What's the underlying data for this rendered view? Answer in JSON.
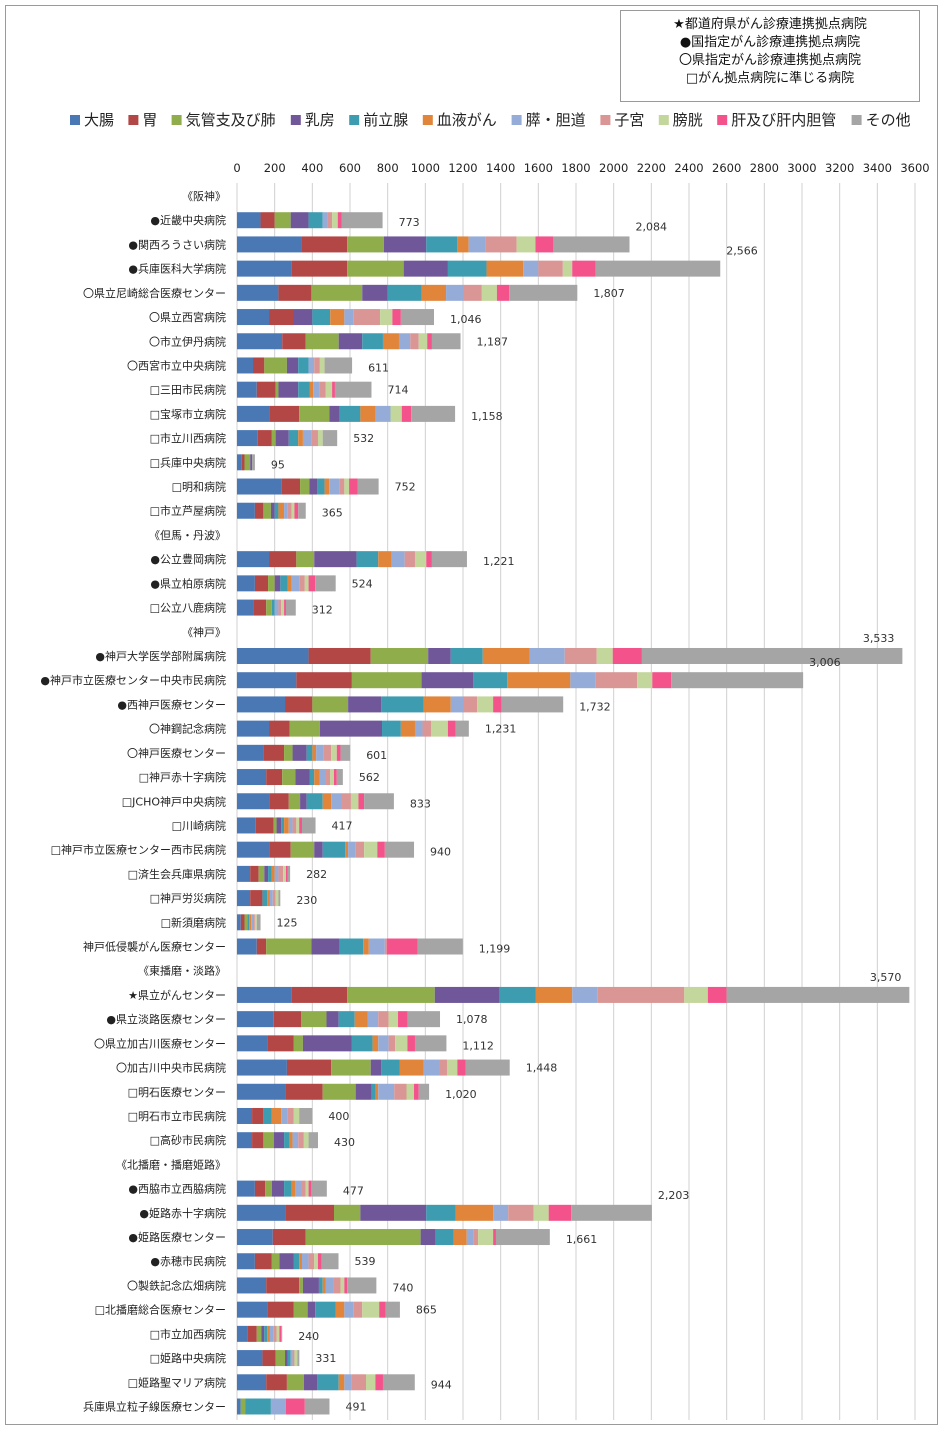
{
  "key_box": [
    "★都道府県がん診療連携拠点病院",
    "●国指定がん診療連携拠点病院",
    "〇県指定がん診療連携拠点病院",
    "□がん拠点病院に準じる病院"
  ],
  "chart_data": {
    "type": "bar",
    "orientation": "horizontal",
    "stacked": true,
    "xlim": [
      0,
      3600
    ],
    "x_ticks": [
      0,
      200,
      400,
      600,
      800,
      1000,
      1200,
      1400,
      1600,
      1800,
      2000,
      2200,
      2400,
      2600,
      2800,
      3000,
      3200,
      3400,
      3600
    ],
    "grid": "vertical",
    "legend_position": "top",
    "series": [
      {
        "name": "大腸",
        "color": "#4a78b5"
      },
      {
        "name": "胃",
        "color": "#b34745"
      },
      {
        "name": "気管支及び肺",
        "color": "#8fad4b"
      },
      {
        "name": "乳房",
        "color": "#6f5799"
      },
      {
        "name": "前立腺",
        "color": "#3d9cb0"
      },
      {
        "name": "血液がん",
        "color": "#e0853a"
      },
      {
        "name": "膵・胆道",
        "color": "#95acd8"
      },
      {
        "name": "子宮",
        "color": "#d99694"
      },
      {
        "name": "膀胱",
        "color": "#c3d69b"
      },
      {
        "name": "肝及び肝内胆管",
        "color": "#f3528a"
      },
      {
        "name": "その他",
        "color": "#a5a5a5"
      }
    ],
    "rows": [
      {
        "label": "《阪神》",
        "group": true
      },
      {
        "label": "●近畿中央病院",
        "total": "773",
        "values": [
          125,
          75,
          85,
          95,
          75,
          0,
          25,
          25,
          30,
          20,
          218
        ]
      },
      {
        "label": "●関西ろうさい病院",
        "total": "2,084",
        "values": [
          345,
          240,
          195,
          225,
          165,
          60,
          90,
          165,
          100,
          95,
          404
        ]
      },
      {
        "label": "●兵庫医科大学病院",
        "total": "2,566",
        "values": [
          290,
          295,
          300,
          235,
          205,
          195,
          80,
          130,
          50,
          125,
          661
        ]
      },
      {
        "label": "〇県立尼崎総合医療センター",
        "total": "1,807",
        "values": [
          220,
          175,
          270,
          135,
          180,
          130,
          90,
          100,
          80,
          65,
          362
        ]
      },
      {
        "label": "〇県立西宮病院",
        "total": "1,046",
        "values": [
          170,
          130,
          0,
          100,
          95,
          75,
          50,
          140,
          65,
          45,
          176
        ]
      },
      {
        "label": "〇市立伊丹病院",
        "total": "1,187",
        "values": [
          240,
          125,
          175,
          125,
          110,
          85,
          60,
          45,
          45,
          25,
          152
        ]
      },
      {
        "label": "〇西宮市立中央病院",
        "total": "611",
        "values": [
          85,
          60,
          120,
          60,
          55,
          0,
          30,
          30,
          25,
          0,
          146
        ]
      },
      {
        "label": "□三田市民病院",
        "total": "714",
        "values": [
          105,
          100,
          15,
          105,
          60,
          20,
          35,
          30,
          35,
          15,
          194
        ]
      },
      {
        "label": "□宝塚市立病院",
        "total": "1,158",
        "values": [
          175,
          155,
          160,
          55,
          110,
          80,
          80,
          0,
          60,
          50,
          233
        ]
      },
      {
        "label": "□市立川西病院",
        "total": "532",
        "values": [
          110,
          75,
          20,
          70,
          50,
          25,
          45,
          35,
          25,
          0,
          77
        ]
      },
      {
        "label": "□兵庫中央病院",
        "total": "95",
        "values": [
          25,
          15,
          30,
          10,
          0,
          0,
          0,
          0,
          0,
          0,
          15
        ]
      },
      {
        "label": "□明和病院",
        "total": "752",
        "values": [
          235,
          100,
          50,
          40,
          40,
          25,
          55,
          25,
          25,
          45,
          112
        ]
      },
      {
        "label": "□市立芦屋病院",
        "total": "365",
        "values": [
          95,
          45,
          40,
          20,
          20,
          30,
          20,
          20,
          15,
          20,
          40
        ]
      },
      {
        "label": "《但馬・丹波》",
        "group": true
      },
      {
        "label": "●公立豊岡病院",
        "total": "1,221",
        "values": [
          170,
          145,
          95,
          225,
          115,
          70,
          70,
          55,
          60,
          30,
          186
        ]
      },
      {
        "label": "●県立柏原病院",
        "total": "524",
        "values": [
          95,
          70,
          35,
          30,
          40,
          20,
          40,
          30,
          20,
          35,
          109
        ]
      },
      {
        "label": "□公立八鹿病院",
        "total": "312",
        "values": [
          90,
          65,
          30,
          0,
          15,
          0,
          20,
          15,
          15,
          10,
          52
        ]
      },
      {
        "label": "《神戸》",
        "group": true
      },
      {
        "label": "●神戸大学医学部附属病院",
        "total": "3,533",
        "values": [
          380,
          330,
          305,
          120,
          170,
          250,
          185,
          170,
          85,
          155,
          1383
        ]
      },
      {
        "label": "●神戸市立医療センター中央市民病院",
        "total": "3,006",
        "values": [
          315,
          295,
          370,
          275,
          180,
          335,
          135,
          220,
          80,
          100,
          701
        ]
      },
      {
        "label": "●西神戸医療センター",
        "total": "1,732",
        "values": [
          255,
          145,
          190,
          175,
          225,
          145,
          65,
          75,
          85,
          45,
          327
        ]
      },
      {
        "label": "〇神鋼記念病院",
        "total": "1,231",
        "values": [
          170,
          110,
          160,
          330,
          100,
          75,
          40,
          45,
          90,
          40,
          71
        ]
      },
      {
        "label": "〇神戸医療センター",
        "total": "601",
        "values": [
          140,
          110,
          45,
          75,
          30,
          20,
          40,
          40,
          30,
          20,
          51
        ]
      },
      {
        "label": "□神戸赤十字病院",
        "total": "562",
        "values": [
          155,
          85,
          70,
          75,
          25,
          30,
          30,
          25,
          20,
          15,
          32
        ]
      },
      {
        "label": "□JCHO神戸中央病院",
        "total": "833",
        "values": [
          175,
          100,
          60,
          35,
          85,
          45,
          55,
          50,
          40,
          30,
          158
        ]
      },
      {
        "label": "□川崎病院",
        "total": "417",
        "values": [
          100,
          95,
          15,
          25,
          15,
          25,
          20,
          20,
          15,
          15,
          72
        ]
      },
      {
        "label": "□神戸市立医療センター西市民病院",
        "total": "940",
        "values": [
          175,
          110,
          125,
          45,
          120,
          15,
          40,
          45,
          70,
          40,
          155
        ]
      },
      {
        "label": "□済生会兵庫県病院",
        "total": "282",
        "values": [
          70,
          45,
          30,
          20,
          20,
          15,
          20,
          25,
          15,
          10,
          12
        ]
      },
      {
        "label": "□神戸労災病院",
        "total": "230",
        "values": [
          70,
          65,
          0,
          0,
          25,
          15,
          15,
          15,
          15,
          0,
          10
        ]
      },
      {
        "label": "□新須磨病院",
        "total": "125",
        "values": [
          20,
          20,
          15,
          0,
          10,
          10,
          10,
          10,
          10,
          0,
          20
        ]
      },
      {
        "label": "神戸低侵襲がん医療センター",
        "total": "1,199",
        "values": [
          105,
          50,
          240,
          150,
          125,
          30,
          85,
          10,
          0,
          165,
          239
        ]
      },
      {
        "label": "《東播磨・淡路》",
        "group": true
      },
      {
        "label": "★県立がんセンター",
        "total": "3,570",
        "values": [
          290,
          295,
          465,
          345,
          190,
          195,
          135,
          460,
          125,
          100,
          970
        ]
      },
      {
        "label": "●県立淡路医療センター",
        "total": "1,078",
        "values": [
          195,
          145,
          135,
          65,
          85,
          70,
          55,
          55,
          50,
          50,
          173
        ]
      },
      {
        "label": "〇県立加古川医療センター",
        "total": "1,112",
        "values": [
          160,
          140,
          50,
          260,
          110,
          30,
          55,
          35,
          65,
          40,
          167
        ]
      },
      {
        "label": "〇加古川中央市民病院",
        "total": "1,448",
        "values": [
          265,
          235,
          210,
          55,
          100,
          125,
          85,
          40,
          55,
          45,
          233
        ]
      },
      {
        "label": "□明石医療センター",
        "total": "1,020",
        "values": [
          260,
          195,
          175,
          85,
          20,
          15,
          85,
          65,
          40,
          25,
          55
        ]
      },
      {
        "label": "□明石市立市民病院",
        "total": "400",
        "values": [
          80,
          60,
          0,
          0,
          45,
          50,
          35,
          30,
          30,
          0,
          70
        ]
      },
      {
        "label": "□高砂市民病院",
        "total": "430",
        "values": [
          80,
          60,
          55,
          55,
          30,
          15,
          30,
          30,
          25,
          0,
          50
        ]
      },
      {
        "label": "《北播磨・播磨姫路》",
        "group": true
      },
      {
        "label": "●西脇市立西脇病院",
        "total": "477",
        "values": [
          95,
          55,
          35,
          65,
          40,
          20,
          35,
          20,
          15,
          15,
          82
        ]
      },
      {
        "label": "●姫路赤十字病院",
        "total": "2,203",
        "values": [
          260,
          255,
          140,
          350,
          155,
          200,
          80,
          135,
          80,
          120,
          428
        ]
      },
      {
        "label": "●姫路医療センター",
        "total": "1,661",
        "values": [
          190,
          175,
          610,
          80,
          95,
          70,
          35,
          25,
          80,
          15,
          286
        ]
      },
      {
        "label": "●赤穂市民病院",
        "total": "539",
        "values": [
          95,
          90,
          40,
          75,
          30,
          15,
          35,
          30,
          20,
          20,
          89
        ]
      },
      {
        "label": "〇製鉄記念広畑病院",
        "total": "740",
        "values": [
          155,
          175,
          20,
          85,
          20,
          15,
          40,
          40,
          20,
          15,
          155
        ]
      },
      {
        "label": "□北播磨総合医療センター",
        "total": "865",
        "values": [
          160,
          140,
          75,
          40,
          110,
          45,
          50,
          45,
          90,
          35,
          75
        ]
      },
      {
        "label": "□市立加西病院",
        "total": "240",
        "values": [
          55,
          50,
          25,
          15,
          15,
          15,
          20,
          15,
          15,
          10,
          5
        ]
      },
      {
        "label": "□姫路中央病院",
        "total": "331",
        "values": [
          135,
          70,
          50,
          15,
          15,
          0,
          10,
          10,
          15,
          0,
          11
        ]
      },
      {
        "label": "□姫路聖マリア病院",
        "total": "944",
        "values": [
          155,
          110,
          90,
          70,
          115,
          30,
          40,
          75,
          50,
          40,
          169
        ]
      },
      {
        "label": "兵庫県立粒子線医療センター",
        "total": "491",
        "values": [
          20,
          0,
          25,
          0,
          135,
          0,
          80,
          0,
          0,
          100,
          131
        ]
      }
    ]
  }
}
